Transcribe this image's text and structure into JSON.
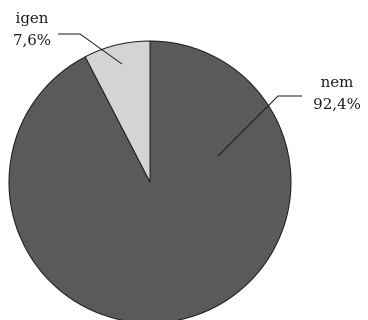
{
  "chart_data": {
    "type": "pie",
    "categories": [
      "nem",
      "igen"
    ],
    "values": [
      92.4,
      7.6
    ],
    "value_labels": [
      "92,4%",
      "7,6%"
    ],
    "colors": [
      "#5a5a5a",
      "#d4d4d4"
    ],
    "title": "",
    "legend": "none"
  }
}
